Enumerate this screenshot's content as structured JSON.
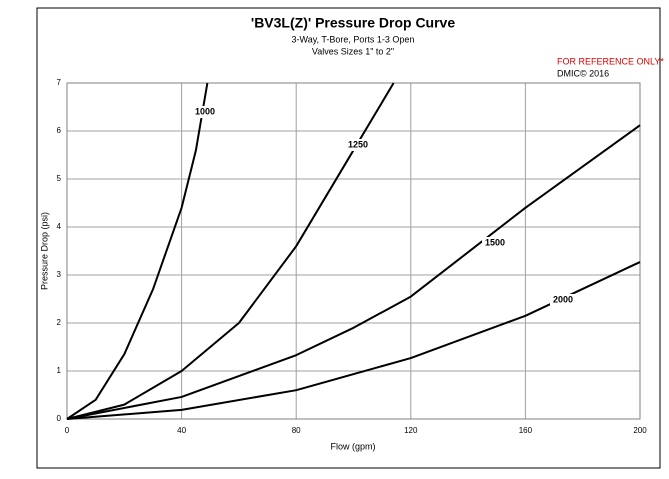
{
  "chart_data": {
    "type": "line",
    "title": "'BV3L(Z)' Pressure Drop Curve",
    "subtitle": [
      "3-Way, T-Bore, Ports 1-3 Open",
      "Valves Sizes 1\" to 2\""
    ],
    "annotations": [
      "FOR REFERENCE ONLY*",
      "DMIC© 2016"
    ],
    "x_label": "Flow (gpm)",
    "y_label": "Pressure Drop (psi)",
    "xlim": [
      0,
      200
    ],
    "xticks": [
      0,
      40,
      80,
      120,
      160,
      200
    ],
    "ylim": [
      0,
      7
    ],
    "yticks": [
      0,
      1,
      2,
      3,
      4,
      5,
      6,
      7
    ],
    "grid": true,
    "series": [
      {
        "name": "1000",
        "color": "#000000",
        "x": [
          0,
          10,
          20,
          30,
          40,
          45,
          49
        ],
        "values": [
          0,
          0.4,
          1.35,
          2.7,
          4.4,
          5.6,
          7
        ]
      },
      {
        "name": "1250",
        "color": "#000000",
        "x": [
          0,
          20,
          40,
          60,
          80,
          100,
          114
        ],
        "values": [
          0,
          0.3,
          1.0,
          2.0,
          3.6,
          5.6,
          7
        ]
      },
      {
        "name": "1500",
        "color": "#000000",
        "x": [
          0,
          40,
          80,
          100,
          120,
          160,
          200
        ],
        "values": [
          0,
          0.46,
          1.33,
          1.9,
          2.55,
          4.4,
          6.12
        ]
      },
      {
        "name": "2000",
        "color": "#000000",
        "x": [
          0,
          40,
          80,
          120,
          160,
          200
        ],
        "values": [
          0,
          0.19,
          0.6,
          1.27,
          2.15,
          3.27
        ]
      }
    ]
  }
}
